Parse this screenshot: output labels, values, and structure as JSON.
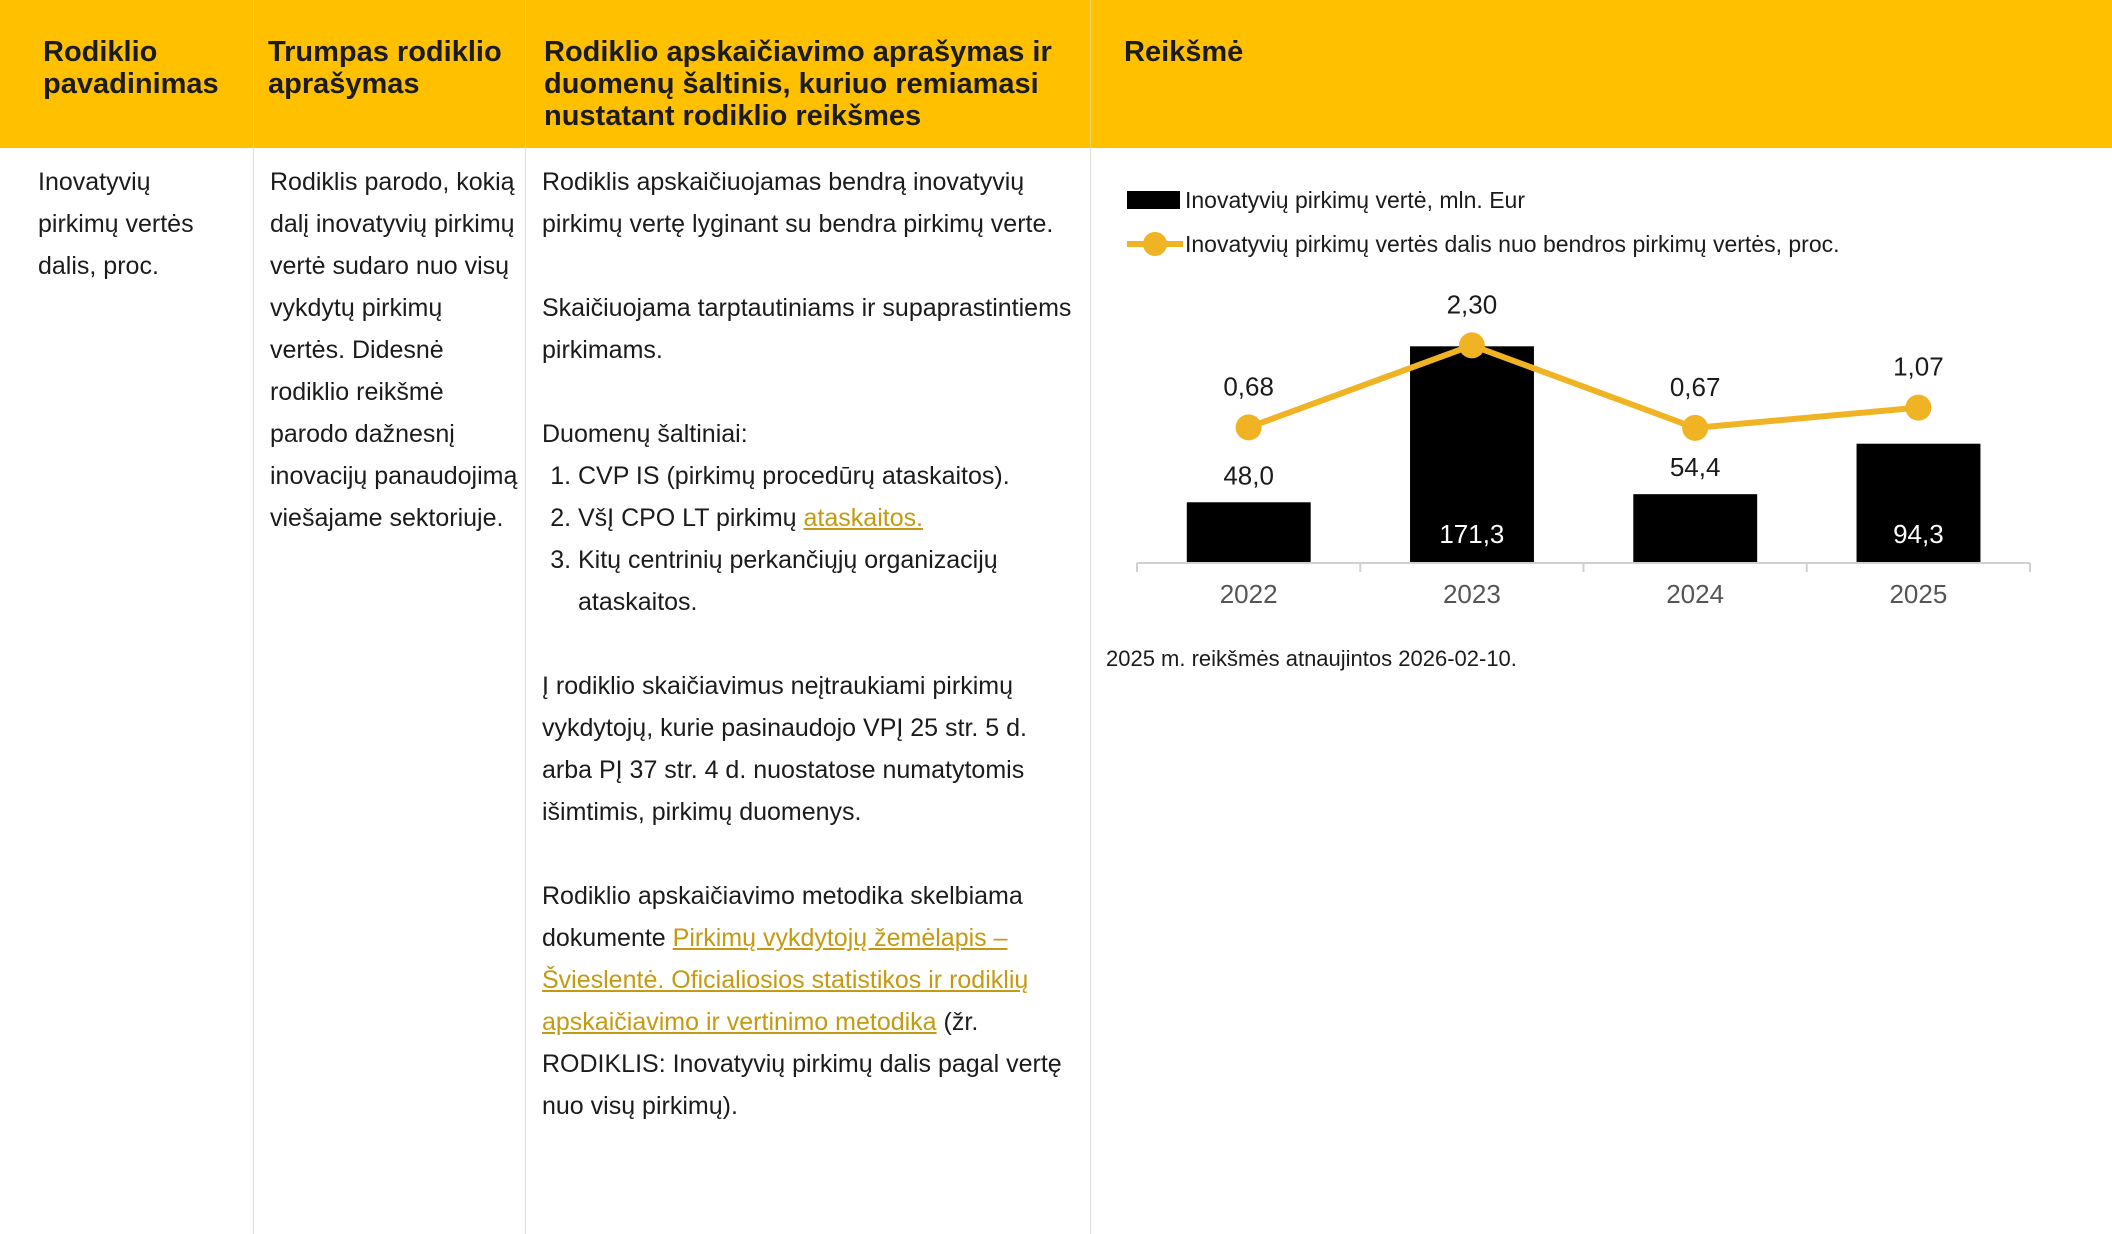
{
  "header": [
    "Rodiklio pavadinimas",
    "Trumpas rodiklio aprašymas",
    "Rodiklio apskaičiavimo aprašymas ir duomenų šaltinis, kuriuo remiamasi nustatant rodiklio reikšmes",
    "Reikšmė"
  ],
  "row": {
    "name": "Inovatyvių pirkimų vertės dalis, proc.",
    "short": "Rodiklis parodo, kokią dalį inovatyvių pirkimų vertė sudaro nuo visų vykdytų pirkimų vertės. Didesnė rodiklio reikšmė parodo dažnesnį inovacijų panaudojimą viešajame sektoriuje.",
    "description": {
      "p1": "Rodiklis apskaičiuojamas bendrą inovatyvių pirkimų vertę lyginant su bendra pirkimų verte.",
      "p2": "Skaičiuojama tarptautiniams ir supaprastintiems pirkimams.",
      "sources_title": "Duomenų šaltiniai:",
      "sources": [
        {
          "text": "CVP IS (pirkimų procedūrų ataskaitos)."
        },
        {
          "text": "VšĮ CPO LT pirkimų",
          "link": "ataskaitos."
        },
        {
          "text": "Kitų centrinių perkančiųjų organizacijų ataskaitos."
        }
      ],
      "p3": "Į rodiklio skaičiavimus neįtraukiami pirkimų vykdytojų, kurie pasinaudojo VPĮ 25 str. 5 d. arba PĮ 37 str. 4 d. nuostatose numatytomis išimtimis, pirkimų duomenys.",
      "p4": {
        "before": "Rodiklio apskaičiavimo metodika skelbiama dokumente",
        "link": "Pirkimų vykdytojų žemėlapis – Švieslentė. Oficialiosios statistikos ir rodiklių apskaičiavimo ir vertinimo metodika",
        "after": "(žr. RODIKLIS: Inovatyvių pirkimų dalis pagal vertę nuo visų pirkimų)."
      }
    }
  },
  "chart_data": {
    "type": "bar_line",
    "categories": [
      "2022",
      "2023",
      "2024",
      "2025"
    ],
    "series": [
      {
        "name": "Inovatyvių pirkimų vertė, mln. Eur",
        "type": "bar",
        "color": "#000000",
        "values": [
          48.0,
          171.3,
          54.4,
          94.3
        ],
        "value_labels": [
          "48,0",
          "171,3",
          "54,4",
          "94,3"
        ]
      },
      {
        "name": "Inovatyvių pirkimų vertės dalis nuo bendros pirkimų vertės, proc.",
        "type": "line",
        "axis": "y2",
        "color": "#f0b323",
        "values": [
          0.68,
          2.3,
          0.67,
          1.07
        ],
        "value_labels": [
          "0,68",
          "2,30",
          "0,67",
          "1,07"
        ]
      }
    ],
    "ylim": [
      0,
      200
    ],
    "y2lim": [
      -2,
      3
    ]
  },
  "note": "2025 m. reikšmės atnaujintos 2026-02-10."
}
